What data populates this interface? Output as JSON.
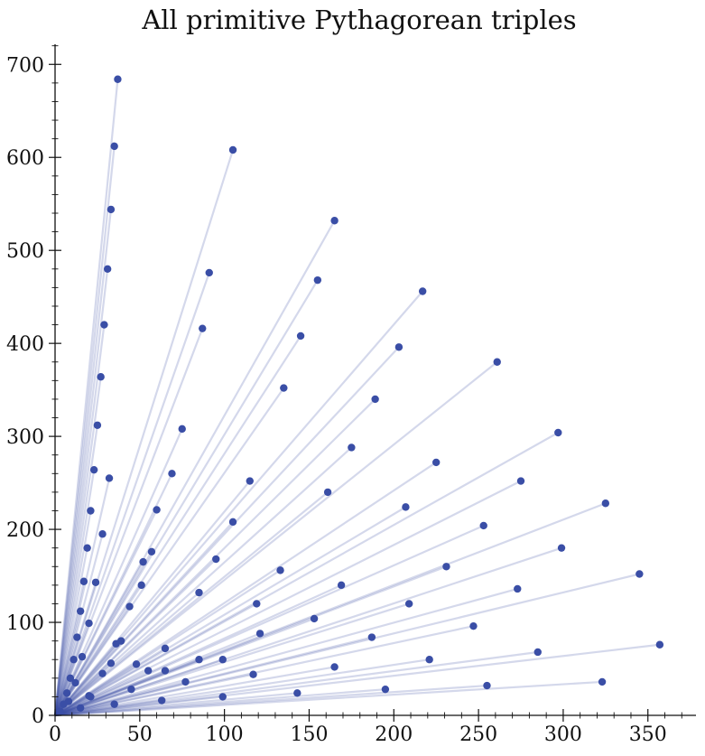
{
  "chart_data": {
    "type": "scatter",
    "title": "All primitive Pythagorean triples",
    "xlabel": "",
    "ylabel": "",
    "xlim": [
      0,
      375
    ],
    "ylim": [
      0,
      720
    ],
    "x_ticks": [
      0,
      50,
      100,
      150,
      200,
      250,
      300,
      350
    ],
    "y_ticks": [
      0,
      100,
      200,
      300,
      400,
      500,
      600,
      700
    ],
    "x_tick_labels": [
      "0",
      "50",
      "100",
      "150",
      "200",
      "250",
      "300",
      "350"
    ],
    "y_tick_labels": [
      "0",
      "100",
      "200",
      "300",
      "400",
      "500",
      "600",
      "700"
    ],
    "grid": false,
    "rays_from_origin": true,
    "colors": {
      "point": "#3a4ea6",
      "ray": "#3a4ea6",
      "axis": "#111111"
    },
    "points": [
      [
        3,
        4
      ],
      [
        5,
        12
      ],
      [
        7,
        24
      ],
      [
        9,
        40
      ],
      [
        11,
        60
      ],
      [
        13,
        84
      ],
      [
        15,
        112
      ],
      [
        17,
        144
      ],
      [
        19,
        180
      ],
      [
        21,
        220
      ],
      [
        23,
        264
      ],
      [
        25,
        312
      ],
      [
        27,
        364
      ],
      [
        29,
        420
      ],
      [
        31,
        480
      ],
      [
        33,
        544
      ],
      [
        35,
        612
      ],
      [
        37,
        684
      ],
      [
        8,
        15
      ],
      [
        12,
        35
      ],
      [
        16,
        63
      ],
      [
        20,
        99
      ],
      [
        24,
        143
      ],
      [
        28,
        195
      ],
      [
        32,
        255
      ],
      [
        20,
        21
      ],
      [
        28,
        45
      ],
      [
        36,
        77
      ],
      [
        44,
        117
      ],
      [
        52,
        165
      ],
      [
        60,
        221
      ],
      [
        33,
        56
      ],
      [
        39,
        80
      ],
      [
        65,
        72
      ],
      [
        48,
        55
      ],
      [
        51,
        140
      ],
      [
        57,
        176
      ],
      [
        69,
        260
      ],
      [
        75,
        308
      ],
      [
        85,
        132
      ],
      [
        87,
        416
      ],
      [
        91,
        476
      ],
      [
        95,
        168
      ],
      [
        105,
        208
      ],
      [
        105,
        608
      ],
      [
        115,
        252
      ],
      [
        119,
        120
      ],
      [
        133,
        156
      ],
      [
        135,
        352
      ],
      [
        145,
        408
      ],
      [
        155,
        468
      ],
      [
        161,
        240
      ],
      [
        165,
        532
      ],
      [
        169,
        140
      ],
      [
        175,
        288
      ],
      [
        189,
        340
      ],
      [
        203,
        396
      ],
      [
        207,
        224
      ],
      [
        217,
        456
      ],
      [
        225,
        272
      ],
      [
        231,
        160
      ],
      [
        253,
        204
      ],
      [
        261,
        380
      ],
      [
        275,
        252
      ],
      [
        297,
        304
      ],
      [
        299,
        180
      ],
      [
        325,
        228
      ],
      [
        345,
        152
      ],
      [
        357,
        76
      ],
      [
        273,
        136
      ],
      [
        209,
        120
      ],
      [
        247,
        96
      ],
      [
        187,
        84
      ],
      [
        153,
        104
      ],
      [
        121,
        88
      ],
      [
        77,
        36
      ],
      [
        99,
        60
      ],
      [
        65,
        48
      ],
      [
        45,
        28
      ],
      [
        85,
        60
      ],
      [
        117,
        44
      ],
      [
        165,
        52
      ],
      [
        221,
        60
      ],
      [
        285,
        68
      ],
      [
        35,
        12
      ],
      [
        63,
        16
      ],
      [
        99,
        20
      ],
      [
        143,
        24
      ],
      [
        195,
        28
      ],
      [
        255,
        32
      ],
      [
        323,
        36
      ],
      [
        15,
        8
      ],
      [
        21,
        20
      ],
      [
        55,
        48
      ]
    ]
  }
}
